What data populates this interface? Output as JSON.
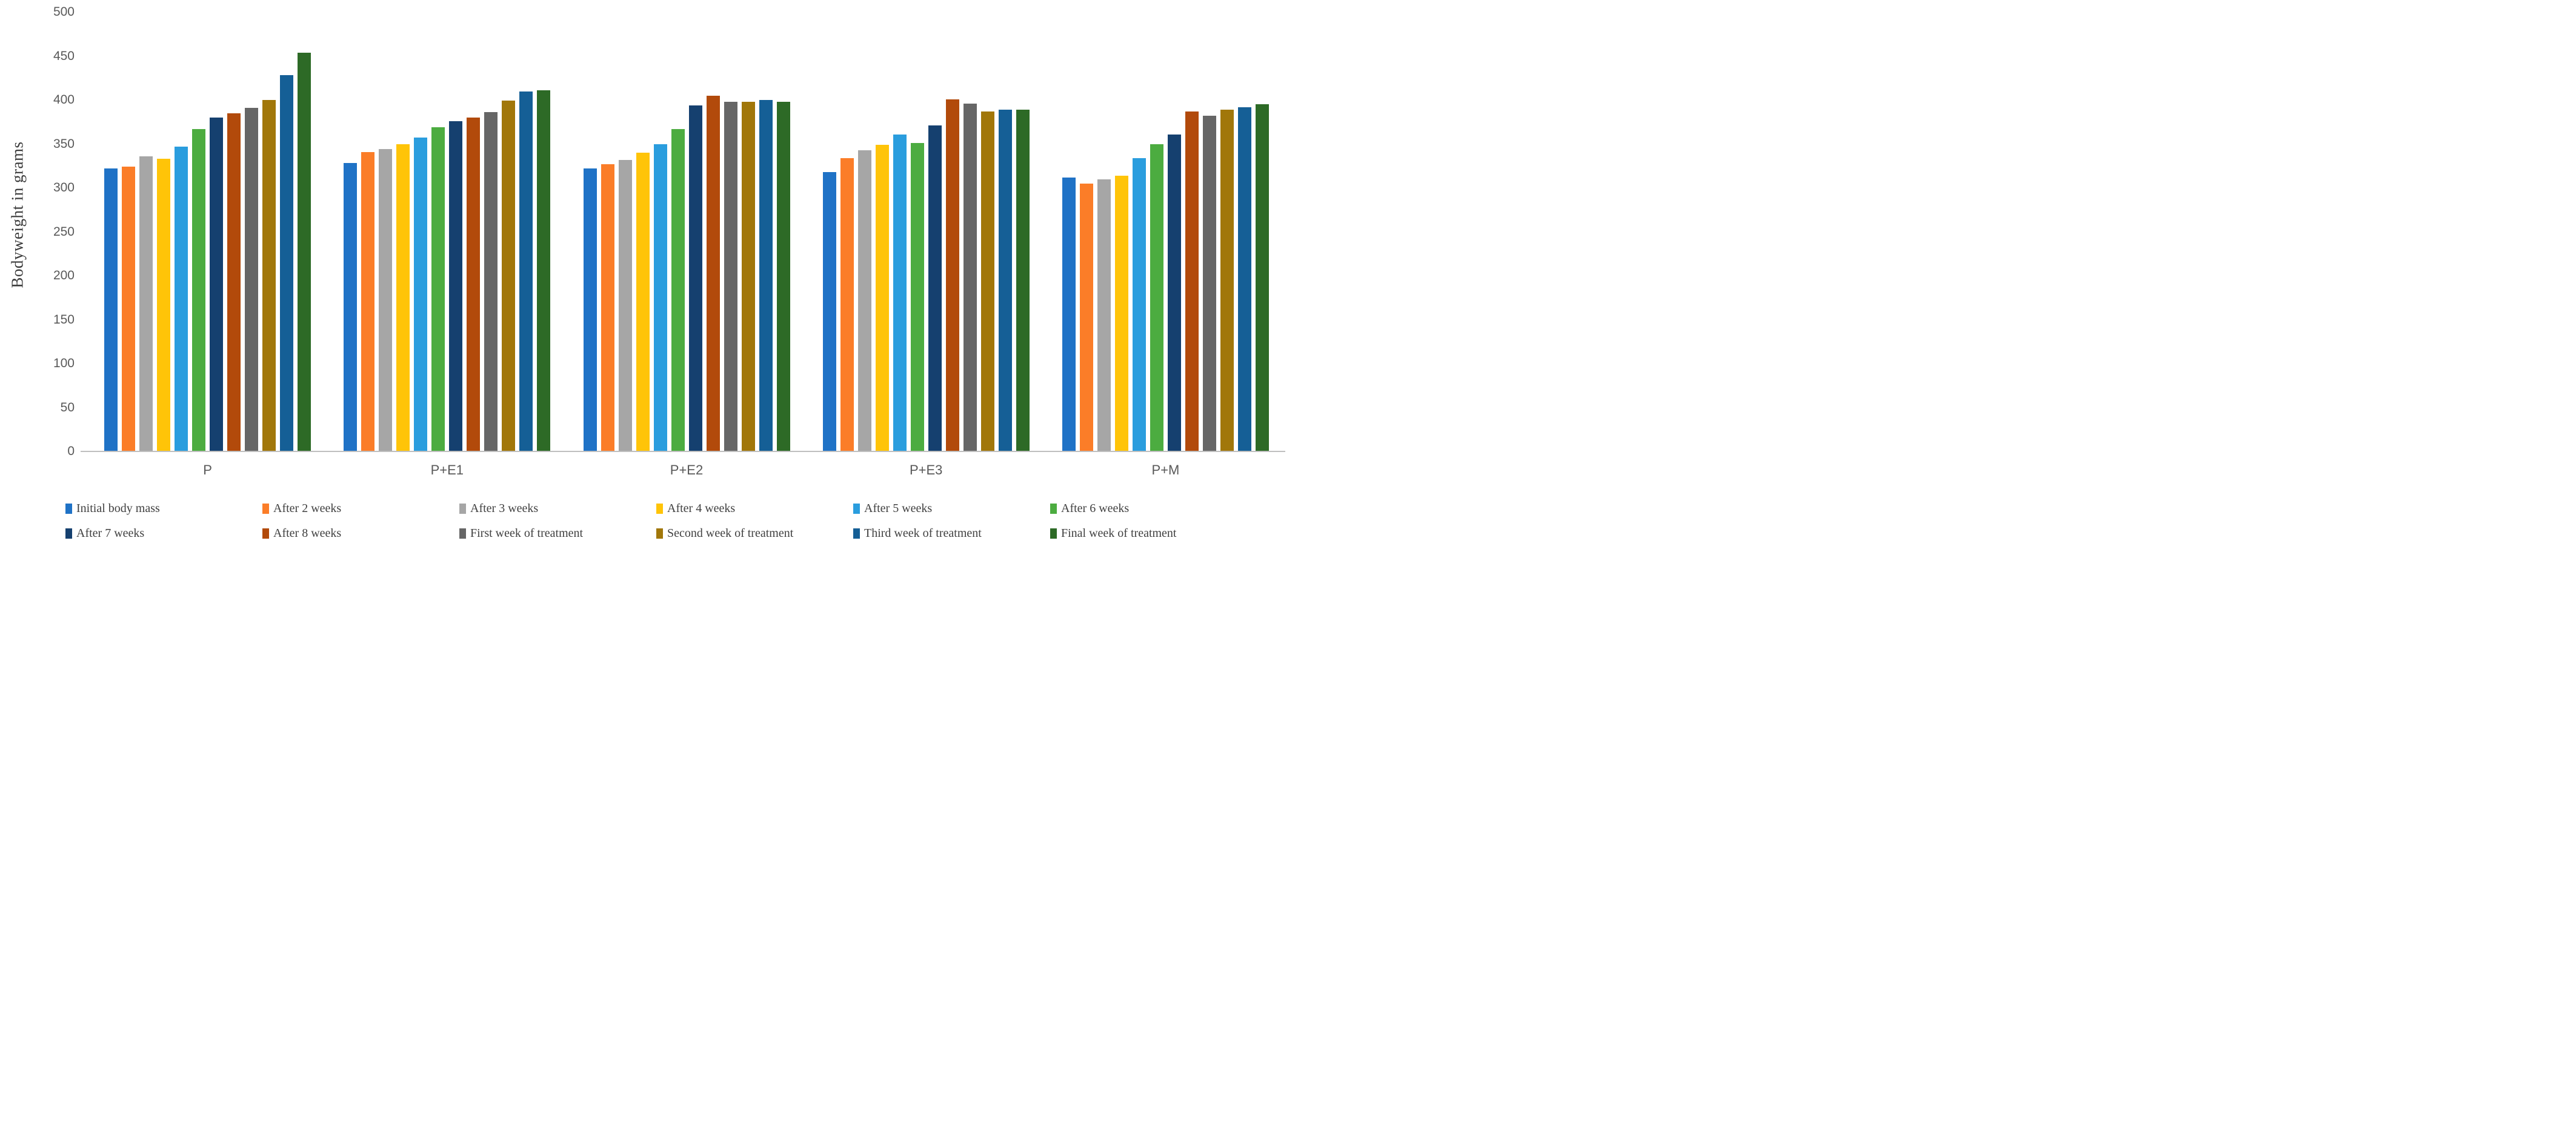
{
  "figure": {
    "title": "",
    "y_axis_title": "Bodyweight in grams"
  },
  "chart_data": {
    "type": "bar",
    "title": "",
    "xlabel": "",
    "ylabel": "Bodyweight in grams",
    "ylim": [
      0,
      500
    ],
    "y_ticks": [
      0,
      50,
      100,
      150,
      200,
      250,
      300,
      350,
      400,
      450,
      500
    ],
    "grid": false,
    "legend_position": "bottom",
    "categories": [
      "P",
      "P+E1",
      "P+E2",
      "P+E3",
      "P+M"
    ],
    "series": [
      {
        "name": "Initial body mass",
        "color": "#1f72c6",
        "values": [
          322,
          328,
          322,
          318,
          312
        ]
      },
      {
        "name": "After 2 weeks",
        "color": "#fb7d28",
        "values": [
          324,
          341,
          327,
          334,
          305
        ]
      },
      {
        "name": "After 3 weeks",
        "color": "#a6a6a6",
        "values": [
          336,
          344,
          332,
          343,
          310
        ]
      },
      {
        "name": "After 4 weeks",
        "color": "#ffc408",
        "values": [
          333,
          350,
          340,
          349,
          314
        ]
      },
      {
        "name": "After 5 weeks",
        "color": "#2a9dde",
        "values": [
          347,
          357,
          350,
          361,
          334
        ]
      },
      {
        "name": "After 6 weeks",
        "color": "#4cac40",
        "values": [
          367,
          369,
          367,
          351,
          350
        ]
      },
      {
        "name": "After 7 weeks",
        "color": "#15406f",
        "values": [
          380,
          376,
          394,
          371,
          361
        ]
      },
      {
        "name": "After 8 weeks",
        "color": "#b24a0b",
        "values": [
          385,
          380,
          405,
          401,
          387
        ]
      },
      {
        "name": "First week of treatment",
        "color": "#666666",
        "values": [
          391,
          386,
          398,
          396,
          382
        ]
      },
      {
        "name": "Second week of treatment",
        "color": "#a1770a",
        "values": [
          400,
          399,
          398,
          387,
          389
        ]
      },
      {
        "name": "Third week of treatment",
        "color": "#155f96",
        "values": [
          428,
          410,
          400,
          389,
          392
        ]
      },
      {
        "name": "Final week of treatment",
        "color": "#2d6a26",
        "values": [
          454,
          411,
          398,
          389,
          395
        ]
      }
    ]
  }
}
